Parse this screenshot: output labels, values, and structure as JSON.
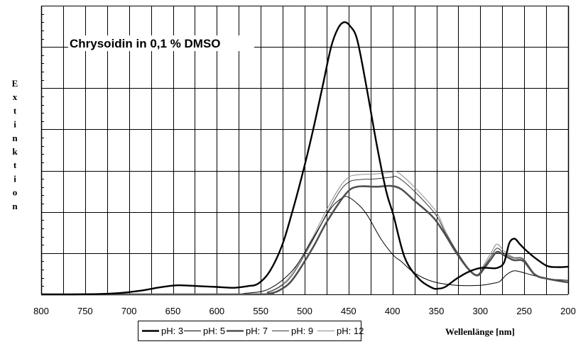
{
  "chart_data": {
    "type": "line",
    "title": "Chrysoidin in 0,1 % DMSO",
    "xlabel": "Wellenlänge [nm]",
    "ylabel": "Extinktion",
    "xlim": [
      800,
      200
    ],
    "x_reversed": true,
    "xticks": [
      "800",
      "750",
      "700",
      "650",
      "600",
      "550",
      "500",
      "450",
      "400",
      "350",
      "300",
      "250",
      "200"
    ],
    "ylim": [
      0,
      7
    ],
    "y_tick_labels_shown": false,
    "grid": true,
    "legend_position": "bottom",
    "series": [
      {
        "name": "pH: 3",
        "color": "#000000",
        "width": 2.4,
        "points": [
          [
            800,
            0
          ],
          [
            760,
            0
          ],
          [
            720,
            0.02
          ],
          [
            690,
            0.08
          ],
          [
            665,
            0.17
          ],
          [
            645,
            0.22
          ],
          [
            620,
            0.2
          ],
          [
            600,
            0.18
          ],
          [
            580,
            0.16
          ],
          [
            565,
            0.2
          ],
          [
            553,
            0.26
          ],
          [
            540,
            0.55
          ],
          [
            526,
            1.17
          ],
          [
            515,
            1.93
          ],
          [
            502,
            2.96
          ],
          [
            491,
            3.93
          ],
          [
            480,
            5.0
          ],
          [
            470,
            5.99
          ],
          [
            462,
            6.45
          ],
          [
            455,
            6.6
          ],
          [
            448,
            6.5
          ],
          [
            440,
            6.16
          ],
          [
            429,
            4.96
          ],
          [
            418,
            3.64
          ],
          [
            407,
            2.49
          ],
          [
            399,
            1.93
          ],
          [
            386,
            0.89
          ],
          [
            370,
            0.38
          ],
          [
            355,
            0.16
          ],
          [
            348,
            0.14
          ],
          [
            340,
            0.18
          ],
          [
            327,
            0.38
          ],
          [
            313,
            0.55
          ],
          [
            300,
            0.64
          ],
          [
            290,
            0.64
          ],
          [
            281,
            0.64
          ],
          [
            273,
            0.77
          ],
          [
            267,
            1.24
          ],
          [
            261,
            1.35
          ],
          [
            255,
            1.22
          ],
          [
            248,
            1.07
          ],
          [
            238,
            0.89
          ],
          [
            224,
            0.69
          ],
          [
            212,
            0.66
          ],
          [
            200,
            0.67
          ]
        ]
      },
      {
        "name": "pH: 5",
        "color": "#000000",
        "width": 1,
        "points": [
          [
            800,
            0
          ],
          [
            600,
            0
          ],
          [
            566,
            0.03
          ],
          [
            540,
            0.14
          ],
          [
            513,
            0.6
          ],
          [
            491,
            1.34
          ],
          [
            472,
            2.03
          ],
          [
            460,
            2.3
          ],
          [
            452,
            2.37
          ],
          [
            440,
            2.2
          ],
          [
            429,
            1.93
          ],
          [
            413,
            1.34
          ],
          [
            399,
            0.95
          ],
          [
            390,
            0.8
          ],
          [
            375,
            0.52
          ],
          [
            354,
            0.31
          ],
          [
            327,
            0.22
          ],
          [
            300,
            0.22
          ],
          [
            285,
            0.27
          ],
          [
            278,
            0.31
          ],
          [
            270,
            0.48
          ],
          [
            262,
            0.57
          ],
          [
            255,
            0.55
          ],
          [
            243,
            0.48
          ],
          [
            224,
            0.38
          ],
          [
            200,
            0.34
          ]
        ]
      },
      {
        "name": "pH: 7",
        "color": "#505050",
        "width": 2.6,
        "points": [
          [
            800,
            0
          ],
          [
            560,
            0
          ],
          [
            540,
            0.02
          ],
          [
            527,
            0.12
          ],
          [
            513,
            0.38
          ],
          [
            491,
            1.12
          ],
          [
            475,
            1.75
          ],
          [
            453,
            2.44
          ],
          [
            440,
            2.61
          ],
          [
            418,
            2.61
          ],
          [
            402,
            2.63
          ],
          [
            390,
            2.55
          ],
          [
            375,
            2.27
          ],
          [
            360,
            2.0
          ],
          [
            351,
            1.8
          ],
          [
            340,
            1.45
          ],
          [
            327,
            1.0
          ],
          [
            313,
            0.6
          ],
          [
            303,
            0.46
          ],
          [
            295,
            0.65
          ],
          [
            288,
            0.85
          ],
          [
            281,
            1.03
          ],
          [
            273,
            0.95
          ],
          [
            262,
            0.83
          ],
          [
            251,
            0.81
          ],
          [
            238,
            0.48
          ],
          [
            224,
            0.38
          ],
          [
            200,
            0.29
          ]
        ]
      },
      {
        "name": "pH: 9",
        "color": "#3a3a3a",
        "width": 1,
        "points": [
          [
            800,
            0
          ],
          [
            560,
            0
          ],
          [
            542,
            0.05
          ],
          [
            527,
            0.2
          ],
          [
            513,
            0.5
          ],
          [
            491,
            1.3
          ],
          [
            475,
            1.95
          ],
          [
            460,
            2.5
          ],
          [
            450,
            2.72
          ],
          [
            440,
            2.78
          ],
          [
            420,
            2.8
          ],
          [
            402,
            2.84
          ],
          [
            394,
            2.84
          ],
          [
            375,
            2.5
          ],
          [
            351,
            1.94
          ],
          [
            340,
            1.5
          ],
          [
            327,
            1.05
          ],
          [
            313,
            0.62
          ],
          [
            303,
            0.48
          ],
          [
            295,
            0.7
          ],
          [
            288,
            0.92
          ],
          [
            281,
            1.12
          ],
          [
            273,
            1.0
          ],
          [
            262,
            0.88
          ],
          [
            251,
            0.85
          ],
          [
            238,
            0.5
          ],
          [
            224,
            0.39
          ],
          [
            200,
            0.3
          ]
        ]
      },
      {
        "name": "pH: 12",
        "color": "#8a8a8a",
        "width": 1,
        "points": [
          [
            800,
            0
          ],
          [
            560,
            0
          ],
          [
            542,
            0.06
          ],
          [
            527,
            0.22
          ],
          [
            513,
            0.55
          ],
          [
            491,
            1.38
          ],
          [
            475,
            2.05
          ],
          [
            460,
            2.6
          ],
          [
            450,
            2.84
          ],
          [
            440,
            2.9
          ],
          [
            420,
            2.92
          ],
          [
            402,
            2.96
          ],
          [
            394,
            2.96
          ],
          [
            375,
            2.6
          ],
          [
            351,
            2.03
          ],
          [
            340,
            1.55
          ],
          [
            327,
            1.05
          ],
          [
            313,
            0.62
          ],
          [
            303,
            0.48
          ],
          [
            295,
            0.75
          ],
          [
            288,
            1.0
          ],
          [
            281,
            1.22
          ],
          [
            273,
            1.05
          ],
          [
            262,
            0.9
          ],
          [
            251,
            0.87
          ],
          [
            238,
            0.5
          ],
          [
            224,
            0.39
          ],
          [
            200,
            0.3
          ]
        ]
      }
    ]
  }
}
